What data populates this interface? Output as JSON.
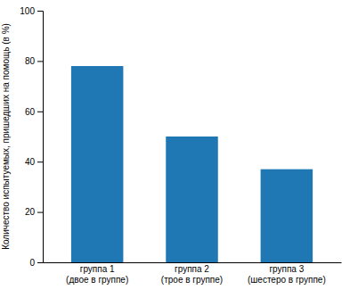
{
  "chart_data": {
    "type": "bar",
    "categories": [
      "группа 1\n(двое в группе)",
      "группа 2\n(трое в группе)",
      "группа 3\n(шестеро в группе)"
    ],
    "values": [
      78,
      50,
      37
    ],
    "ylabel": "Количество испытуемых, пришедших на помощь (в %)",
    "ylim": [
      0,
      100
    ],
    "yticks": [
      0,
      20,
      40,
      60,
      80,
      100
    ],
    "grid": false
  }
}
